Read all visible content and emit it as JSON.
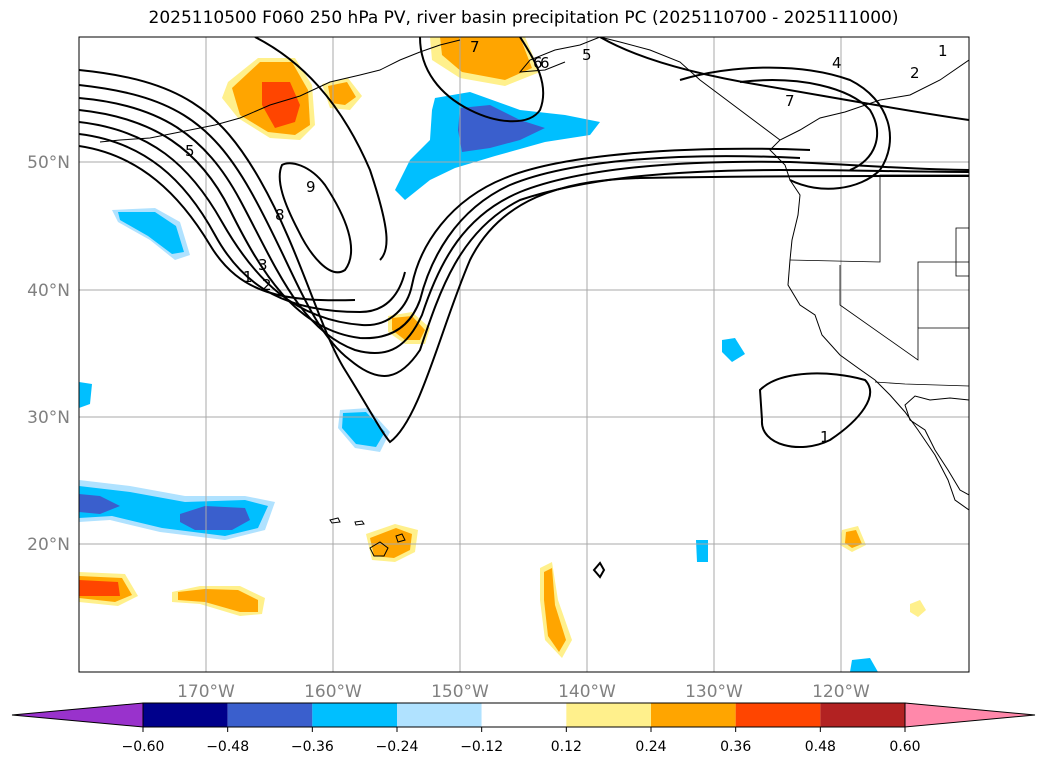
{
  "title": "2025110500 F060 250 hPa PV, river basin precipitation PC (2025110700 - 2025111000)",
  "map": {
    "lat_labels": [
      "50°N",
      "40°N",
      "30°N",
      "20°N"
    ],
    "lon_labels": [
      "170°W",
      "160°W",
      "150°W",
      "140°W",
      "130°W",
      "120°W"
    ],
    "label_color": "#808080",
    "grid": true,
    "contour_labels": [
      "1",
      "2",
      "3",
      "5",
      "6",
      "7",
      "8",
      "9",
      "1",
      "2",
      "4",
      "5",
      "6",
      "7",
      "1"
    ]
  },
  "colorbar": {
    "ticks": [
      "−0.60",
      "−0.48",
      "−0.36",
      "−0.24",
      "−0.12",
      "0.12",
      "0.24",
      "0.36",
      "0.48",
      "0.60"
    ],
    "colors": [
      "#9932cc",
      "#00008b",
      "#3a5fcd",
      "#00bfff",
      "#b0e2ff",
      "#ffffff",
      "#fff08c",
      "#ffa500",
      "#ff4500",
      "#b22222",
      "#ff88aa"
    ]
  }
}
